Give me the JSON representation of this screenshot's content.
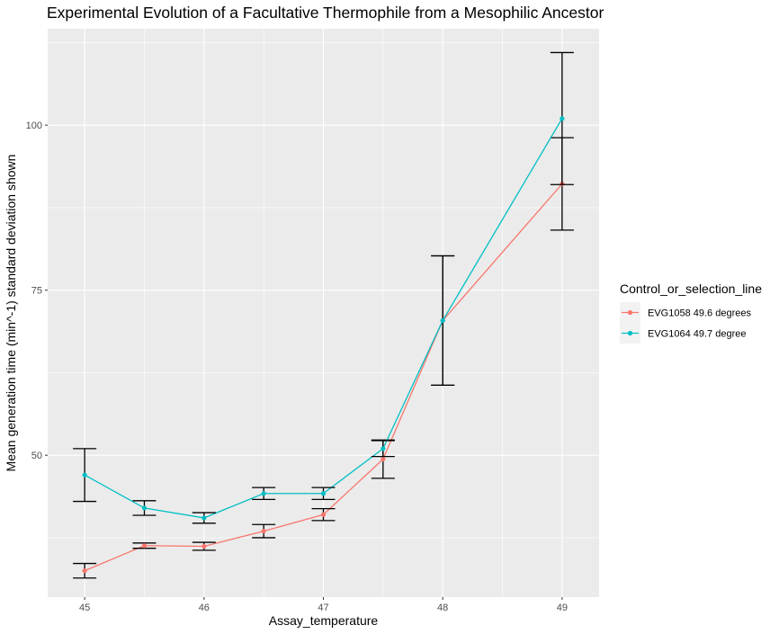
{
  "chart_data": {
    "type": "line",
    "title": "Experimental Evolution of a Facultative Thermophile from a Mesophilic Ancestor",
    "xlabel": "Assay_temperature",
    "ylabel": "Mean generation time (min^-1)  standard deviation shown",
    "x_ticks": [
      45,
      46,
      47,
      48,
      49
    ],
    "y_ticks": [
      50,
      75,
      100
    ],
    "xlim": [
      44.69,
      49.31
    ],
    "ylim": [
      28.5,
      114.6
    ],
    "grid": true,
    "legend": {
      "title": "Control_or_selection_line",
      "position": "right"
    },
    "series": [
      {
        "name": "EVG1058 49.6 degrees",
        "color": "#F8766D",
        "x": [
          45,
          45.5,
          46,
          46.5,
          47,
          47.5,
          48,
          49
        ],
        "y": [
          32.5,
          36.3,
          36.2,
          38.5,
          41.0,
          49.4,
          70.4,
          91.1
        ],
        "err": [
          1.1,
          0.4,
          0.6,
          1.0,
          0.9,
          2.9,
          9.8,
          7.0
        ]
      },
      {
        "name": "EVG1064 49.7 degree",
        "color": "#00BFC4",
        "x": [
          45,
          45.5,
          46,
          46.5,
          47,
          47.5,
          48,
          49
        ],
        "y": [
          47.0,
          42.0,
          40.5,
          44.2,
          44.2,
          51.0,
          70.4,
          101.0
        ],
        "err": [
          4.0,
          1.1,
          0.8,
          0.9,
          0.9,
          1.2,
          9.8,
          10.0
        ]
      }
    ]
  }
}
